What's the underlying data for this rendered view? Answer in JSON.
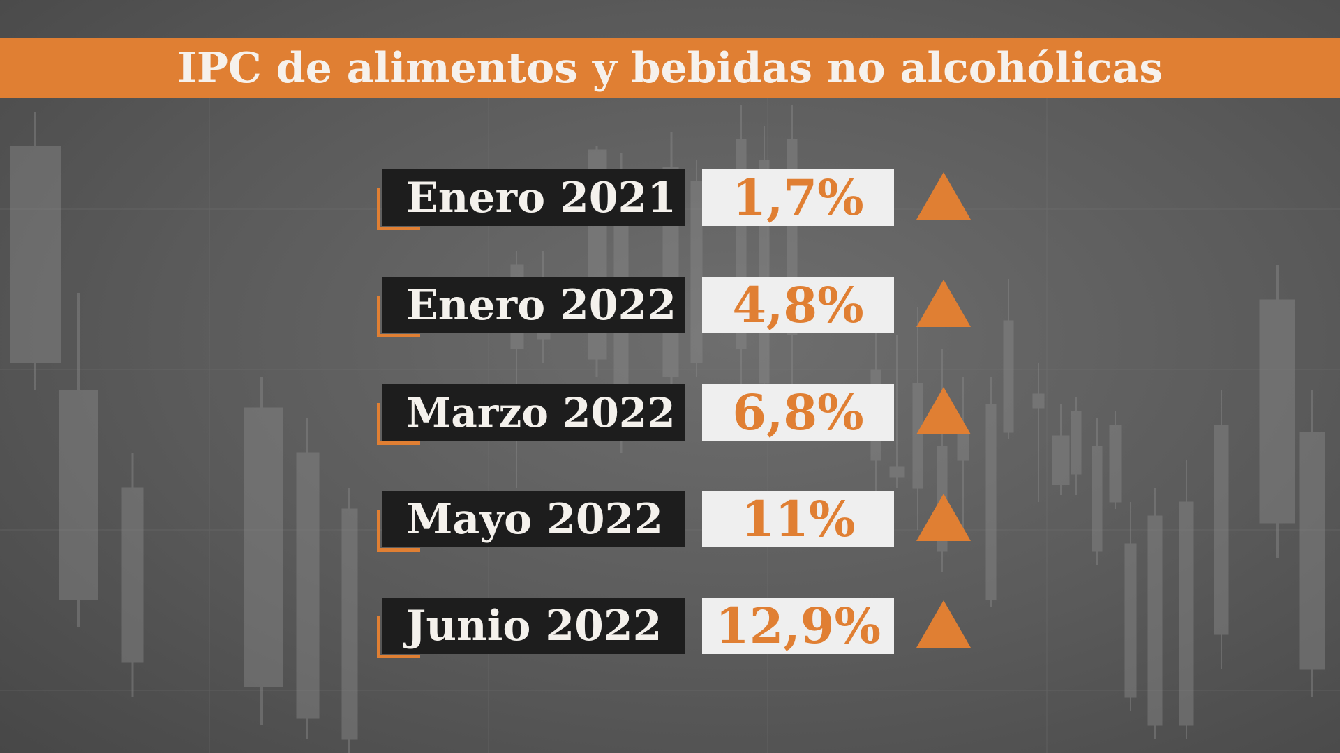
{
  "chart_data": {
    "type": "table",
    "title": "IPC de alimentos y bebidas no alcohólicas",
    "rows": [
      {
        "label": "Enero 2021",
        "value": "1,7%",
        "trend": "up"
      },
      {
        "label": "Enero 2022",
        "value": "4,8%",
        "trend": "up"
      },
      {
        "label": "Marzo 2022",
        "value": "6,8%",
        "trend": "up"
      },
      {
        "label": "Mayo 2022",
        "value": "11%",
        "trend": "up"
      },
      {
        "label": "Junio 2022",
        "value": "12,9%",
        "trend": "up"
      }
    ]
  },
  "colors": {
    "accent": "#e07f33",
    "label_bg": "#1d1d1d",
    "value_bg": "#efefef",
    "background": "#5a5a5a"
  },
  "icons": {
    "trend_up": "triangle-up-icon"
  }
}
